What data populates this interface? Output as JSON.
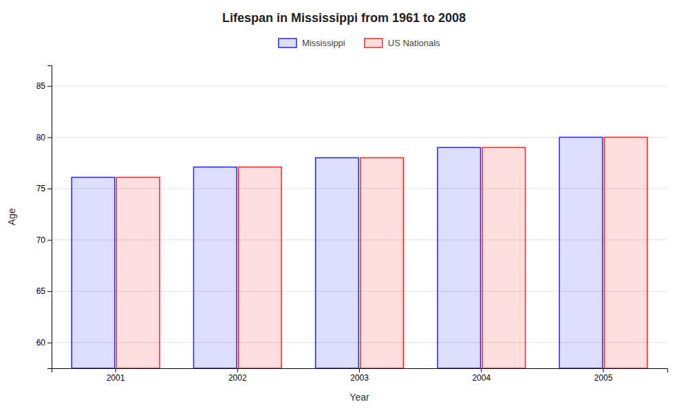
{
  "chart_data": {
    "type": "bar",
    "title": "Lifespan in Mississippi from 1961 to 2008",
    "xlabel": "Year",
    "ylabel": "Age",
    "categories": [
      "2001",
      "2002",
      "2003",
      "2004",
      "2005"
    ],
    "series": [
      {
        "name": "Mississippi",
        "color": "#2222ff",
        "values": [
          76.1,
          77.1,
          78.0,
          79.0,
          80.0
        ]
      },
      {
        "name": "US Nationals",
        "color": "#ff2222",
        "values": [
          76.1,
          77.1,
          78.0,
          79.0,
          80.0
        ]
      }
    ],
    "ylim": [
      57.5,
      87
    ],
    "yticks": [
      60,
      65,
      70,
      75,
      80,
      85
    ],
    "grid": true,
    "legend": "top"
  }
}
